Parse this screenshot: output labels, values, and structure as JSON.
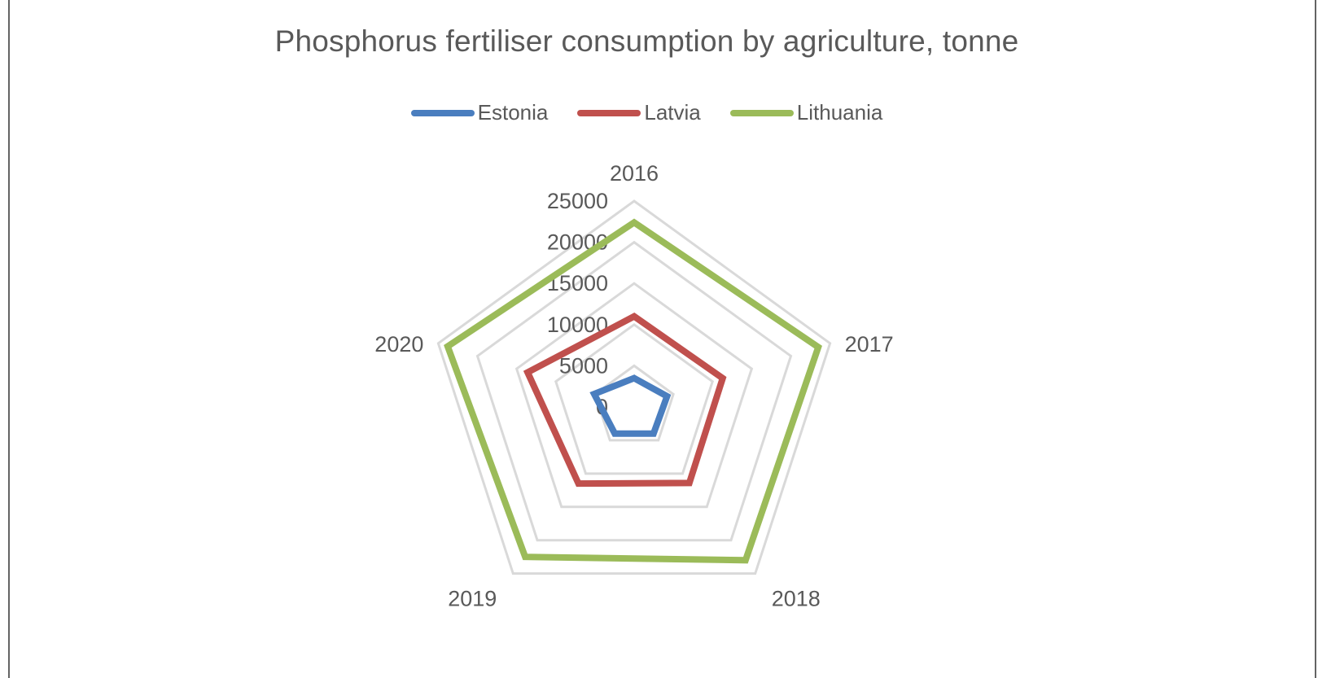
{
  "chart_data": {
    "type": "radar",
    "title": "Phosphorus fertiliser consumption by agriculture, tonne",
    "categories": [
      "2016",
      "2017",
      "2018",
      "2019",
      "2020"
    ],
    "series": [
      {
        "name": "Estonia",
        "color": "#4a7ebf",
        "values": [
          3500,
          4200,
          4000,
          4000,
          5100
        ]
      },
      {
        "name": "Latvia",
        "color": "#c0504d",
        "values": [
          11000,
          11300,
          11400,
          11500,
          13600
        ]
      },
      {
        "name": "Lithuania",
        "color": "#9bbb59",
        "values": [
          22400,
          23500,
          23000,
          22500,
          23800
        ]
      }
    ],
    "radial_ticks": [
      "0",
      "5000",
      "10000",
      "15000",
      "20000",
      "25000"
    ],
    "radial_range": [
      0,
      25000
    ],
    "grid": true,
    "grid_color": "#d9d9d9",
    "legend_position": "top"
  },
  "legend": {
    "items": [
      {
        "label": "Estonia",
        "color": "#4a7ebf"
      },
      {
        "label": "Latvia",
        "color": "#c0504d"
      },
      {
        "label": "Lithuania",
        "color": "#9bbb59"
      }
    ]
  }
}
